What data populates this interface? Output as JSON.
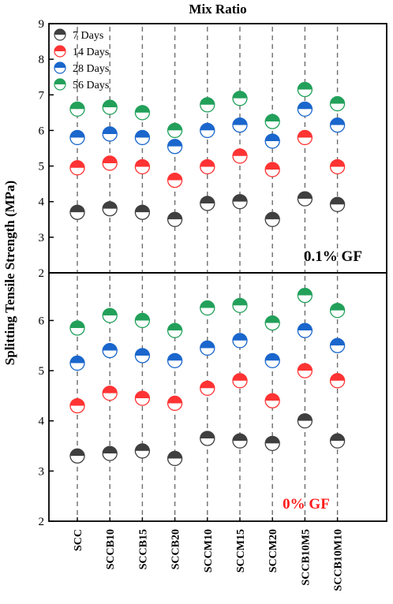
{
  "chart_data": {
    "type": "scatter",
    "title": "Mix Ratio",
    "ylabel": "Splitting Tensile Strength (MPa)",
    "categories": [
      "SCC",
      "SCCB10",
      "SCCB15",
      "SCCB20",
      "SCCM10",
      "SCCM15",
      "SCCM20",
      "SCCB10M5",
      "SCCB10M10"
    ],
    "legend": {
      "placement": "top-left",
      "entries": [
        "7 Days",
        "14 Days",
        "28 Days",
        "56 Days"
      ]
    },
    "series_colors": {
      "7 Days": "#3f3f3f",
      "14 Days": "#ff3333",
      "28 Days": "#1a66cc",
      "56 Days": "#22a05a"
    },
    "panels": [
      {
        "annotation": "0.1% GF",
        "annotation_color": "#000000",
        "ylim": [
          2,
          9
        ],
        "yticks": [
          2,
          3,
          4,
          5,
          6,
          7,
          8,
          9
        ],
        "series": [
          {
            "name": "7 Days",
            "values": [
              3.7,
              3.8,
              3.7,
              3.5,
              3.95,
              4.0,
              3.5,
              4.08,
              3.92
            ]
          },
          {
            "name": "14 Days",
            "values": [
              4.95,
              5.08,
              4.98,
              4.6,
              4.98,
              5.28,
              4.9,
              5.8,
              4.98
            ]
          },
          {
            "name": "28 Days",
            "values": [
              5.8,
              5.9,
              5.8,
              5.55,
              6.0,
              6.15,
              5.7,
              6.6,
              6.15
            ]
          },
          {
            "name": "56 Days",
            "values": [
              6.6,
              6.65,
              6.5,
              6.0,
              6.72,
              6.9,
              6.25,
              7.15,
              6.75
            ]
          }
        ]
      },
      {
        "annotation": "0% GF",
        "annotation_color": "#ff1a1a",
        "ylim": [
          2,
          6.95
        ],
        "yticks": [
          2,
          3,
          4,
          5,
          6
        ],
        "series": [
          {
            "name": "7 Days",
            "values": [
              3.3,
              3.35,
              3.4,
              3.25,
              3.65,
              3.6,
              3.55,
              4.0,
              3.6
            ]
          },
          {
            "name": "14 Days",
            "values": [
              4.3,
              4.55,
              4.45,
              4.35,
              4.65,
              4.8,
              4.4,
              5.0,
              4.8
            ]
          },
          {
            "name": "28 Days",
            "values": [
              5.15,
              5.4,
              5.3,
              5.2,
              5.45,
              5.6,
              5.2,
              5.8,
              5.5
            ]
          },
          {
            "name": "56 Days",
            "values": [
              5.85,
              6.1,
              6.0,
              5.8,
              6.25,
              6.3,
              5.95,
              6.5,
              6.2
            ]
          }
        ]
      }
    ]
  }
}
